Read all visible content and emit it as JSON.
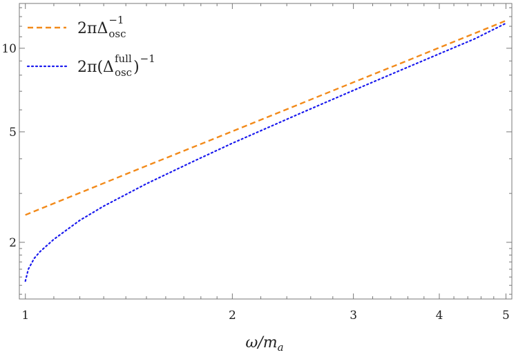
{
  "chart_data": {
    "type": "line",
    "title": "",
    "xlabel": "ω/m_a",
    "ylabel": "",
    "x_scale": "log",
    "y_scale": "log",
    "xlim": [
      0.98,
      5.1
    ],
    "ylim": [
      1.25,
      14.5
    ],
    "x_ticks": [
      1,
      2,
      3,
      4,
      5
    ],
    "y_ticks": [
      2,
      5,
      10
    ],
    "grid": false,
    "legend_position": "top-left",
    "series": [
      {
        "name": "2πΔ_osc^−1",
        "color": "#f28a1a",
        "dash": "dashed",
        "x": [
          1.0,
          1.5,
          2.0,
          2.5,
          3.0,
          3.5,
          4.0,
          4.5,
          5.0
        ],
        "y": [
          2.51,
          3.77,
          5.02,
          6.28,
          7.54,
          8.79,
          10.05,
          11.31,
          12.57
        ]
      },
      {
        "name": "2π(Δ_osc^full)^−1",
        "color": "#1a1aee",
        "dash": "dotted",
        "x": [
          1.0,
          1.01,
          1.03,
          1.05,
          1.1,
          1.2,
          1.3,
          1.5,
          1.75,
          2.0,
          2.5,
          3.0,
          3.5,
          4.0,
          4.5,
          5.0
        ],
        "y": [
          1.45,
          1.6,
          1.75,
          1.85,
          2.05,
          2.4,
          2.7,
          3.25,
          3.9,
          4.55,
          5.8,
          7.05,
          8.3,
          9.55,
          10.8,
          12.3
        ]
      }
    ],
    "legend": [
      {
        "base": "2πΔ",
        "sub": "osc",
        "sup": "−1",
        "series": 0
      },
      {
        "base": "2π(Δ",
        "sub": "osc",
        "sup": "full",
        "tail": ")",
        "tailsup": "−1",
        "series": 1
      }
    ]
  }
}
